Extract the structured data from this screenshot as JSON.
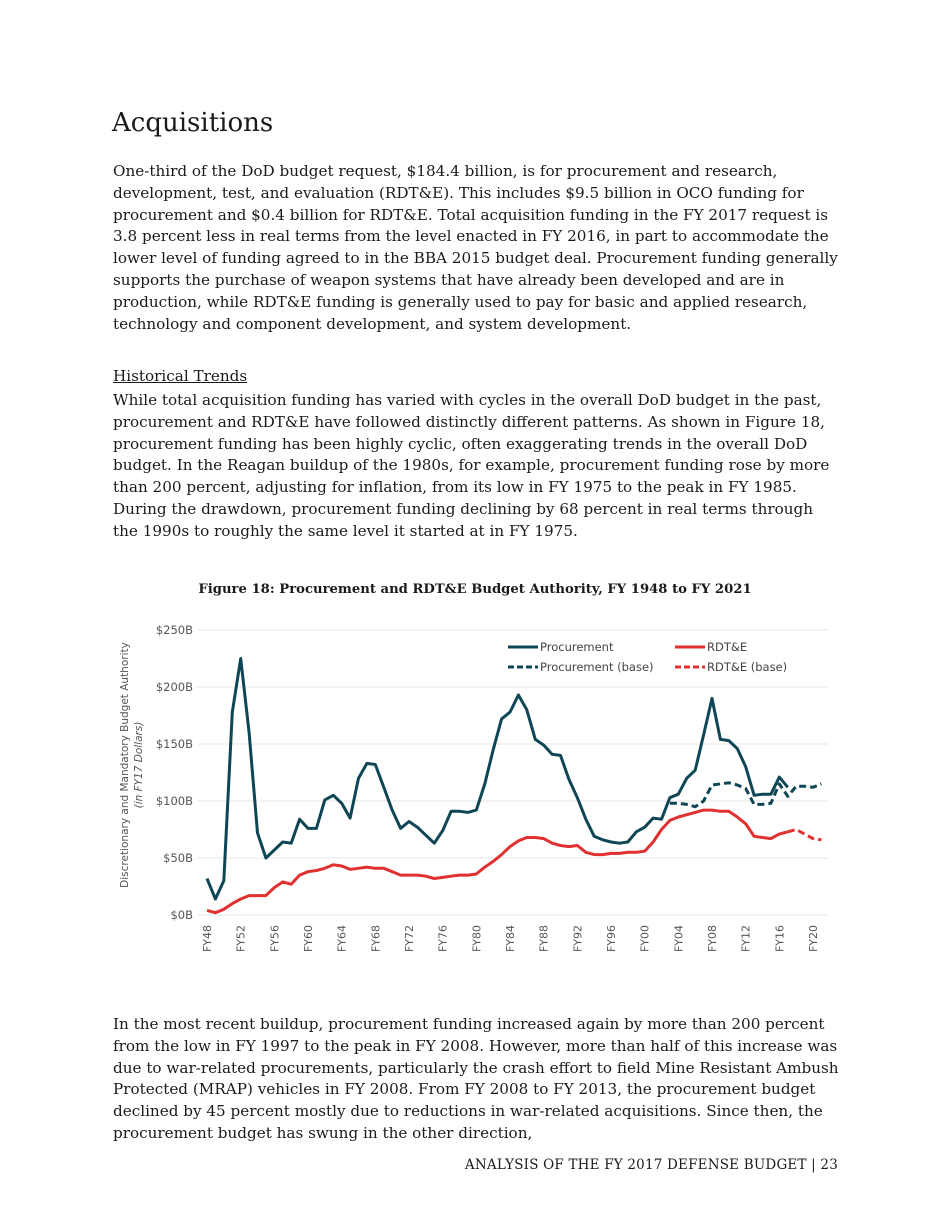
{
  "heading": "Acquisitions",
  "paragraph1": "One-third of the DoD budget request, $184.4 billion, is for procurement and research, development, test, and evaluation (RDT&E). This includes $9.5 billion in OCO funding for procurement and $0.4 billion for RDT&E. Total acquisition funding in the FY 2017 request is 3.8 percent less in real terms from the level enacted in FY 2016, in part to accommodate the lower level of funding agreed to in the BBA 2015 budget deal. Procurement funding generally supports the purchase of weapon systems that have already been developed and are in production, while RDT&E funding is generally used to pay for basic and applied research, technology and component development, and system development.",
  "subheading": "Historical Trends",
  "paragraph2": "While total acquisition funding has varied with cycles in the overall DoD budget in the past, procurement and RDT&E have followed distinctly different patterns. As shown in Figure 18, procurement funding has been highly cyclic, often exaggerating trends in the overall DoD budget. In the Reagan buildup of the 1980s, for example, procurement funding rose by more than 200 percent, adjusting for inflation, from its low in FY 1975 to the peak in FY 1985. During the drawdown, procurement funding declining by 68 percent in real terms through the 1990s to roughly the same level it started at in FY 1975.",
  "figure_title": "Figure 18: Procurement and RDT&E Budget Authority, FY 1948 to FY 2021",
  "paragraph3": "In the most recent buildup, procurement funding increased again by more than 200 percent from the low in FY 1997 to the peak in FY 2008. However, more than half of this increase was due to war-related procurements, particularly the crash effort to field Mine Resistant Ambush Protected (MRAP) vehicles in FY 2008. From FY 2008 to FY 2013, the procurement budget declined by 45 percent mostly due to reductions in war-related acquisitions. Since then, the procurement budget has swung in the other direction,",
  "footer": "ANALYSIS OF THE FY 2017 DEFENSE BUDGET | 23",
  "chart_data": {
    "type": "line",
    "ylabel": "Discretionary and Mandatory Budget Authority",
    "ylabel_sub": "(in FY17 Dollars)",
    "ylim": [
      0,
      250
    ],
    "yticks": [
      "$0B",
      "$50B",
      "$100B",
      "$150B",
      "$200B",
      "$250B"
    ],
    "xticks": [
      "FY48",
      "FY52",
      "FY56",
      "FY60",
      "FY64",
      "FY68",
      "FY72",
      "FY76",
      "FY80",
      "FY84",
      "FY88",
      "FY92",
      "FY96",
      "FY00",
      "FY04",
      "FY08",
      "FY12",
      "FY16",
      "FY20"
    ],
    "xlim": [
      1948,
      2021
    ],
    "grid": true,
    "legend": "top-right",
    "series": [
      {
        "name": "Procurement",
        "color": "#0e4655",
        "dash": false,
        "x_start": 1948,
        "values": [
          32,
          14,
          30,
          178,
          225,
          160,
          72,
          50,
          57,
          64,
          63,
          84,
          76,
          76,
          101,
          105,
          98,
          85,
          120,
          133,
          132,
          112,
          92,
          76,
          82,
          77,
          70,
          63,
          74,
          91,
          91,
          90,
          92,
          115,
          145,
          172,
          178,
          193,
          180,
          154,
          149,
          141,
          140,
          119,
          103,
          84,
          69,
          66,
          64,
          63,
          64,
          73,
          77,
          85,
          84,
          103,
          106,
          120,
          127,
          158,
          190,
          154,
          153,
          146,
          130,
          105,
          106,
          106,
          121,
          112
        ]
      },
      {
        "name": "RDT&E",
        "color": "#e03030",
        "dash": false,
        "x_start": 1948,
        "values": [
          4,
          2,
          5,
          10,
          14,
          17,
          17,
          17,
          24,
          29,
          27,
          35,
          38,
          39,
          41,
          44,
          43,
          40,
          41,
          42,
          41,
          41,
          38,
          35,
          35,
          35,
          34,
          32,
          33,
          34,
          35,
          35,
          36,
          42,
          47,
          53,
          60,
          65,
          68,
          68,
          67,
          63,
          61,
          60,
          61,
          55,
          53,
          53,
          54,
          54,
          55,
          55,
          56,
          64,
          75,
          83,
          86,
          88,
          90,
          92,
          92,
          91,
          91,
          86,
          80,
          69,
          68,
          67,
          71,
          73
        ]
      },
      {
        "name": "Procurement (base)",
        "color": "#0e4655",
        "dash": true,
        "x_start": 2003,
        "values": [
          98,
          98,
          97,
          95,
          100,
          114,
          115,
          116,
          114,
          111,
          97,
          97,
          98,
          115,
          104,
          113,
          113,
          112,
          115
        ]
      },
      {
        "name": "RDT&E (base)",
        "color": "#e03030",
        "dash": true,
        "x_start": 2017,
        "values": [
          73,
          75,
          71,
          67,
          66
        ]
      }
    ]
  }
}
